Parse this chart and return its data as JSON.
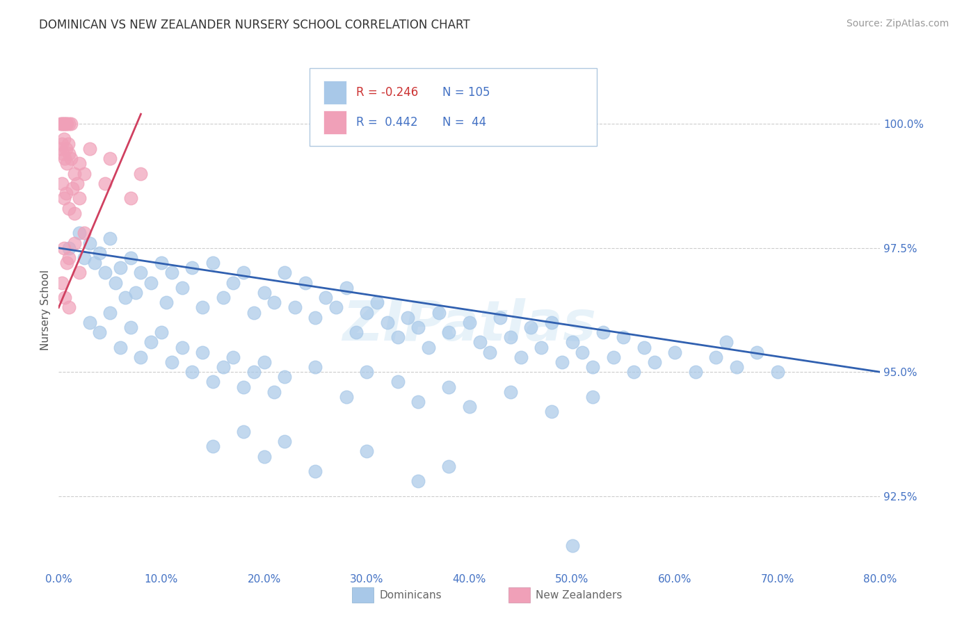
{
  "title": "DOMINICAN VS NEW ZEALANDER NURSERY SCHOOL CORRELATION CHART",
  "source": "Source: ZipAtlas.com",
  "xlabel_dominicans": "Dominicans",
  "xlabel_newzealanders": "New Zealanders",
  "ylabel": "Nursery School",
  "xlim": [
    0.0,
    80.0
  ],
  "ylim": [
    91.0,
    101.5
  ],
  "yticks": [
    92.5,
    95.0,
    97.5,
    100.0
  ],
  "xticks": [
    0.0,
    10.0,
    20.0,
    30.0,
    40.0,
    50.0,
    60.0,
    70.0,
    80.0
  ],
  "r_blue": -0.246,
  "n_blue": 105,
  "r_pink": 0.442,
  "n_pink": 44,
  "blue_color": "#a8c8e8",
  "pink_color": "#f0a0b8",
  "trend_blue": "#3060b0",
  "trend_pink": "#d04060",
  "watermark": "ZIPatlas",
  "blue_dots": [
    [
      1.0,
      97.5
    ],
    [
      2.0,
      97.8
    ],
    [
      2.5,
      97.3
    ],
    [
      3.0,
      97.6
    ],
    [
      3.5,
      97.2
    ],
    [
      4.0,
      97.4
    ],
    [
      4.5,
      97.0
    ],
    [
      5.0,
      97.7
    ],
    [
      5.5,
      96.8
    ],
    [
      6.0,
      97.1
    ],
    [
      6.5,
      96.5
    ],
    [
      7.0,
      97.3
    ],
    [
      7.5,
      96.6
    ],
    [
      8.0,
      97.0
    ],
    [
      9.0,
      96.8
    ],
    [
      10.0,
      97.2
    ],
    [
      10.5,
      96.4
    ],
    [
      11.0,
      97.0
    ],
    [
      12.0,
      96.7
    ],
    [
      13.0,
      97.1
    ],
    [
      14.0,
      96.3
    ],
    [
      15.0,
      97.2
    ],
    [
      16.0,
      96.5
    ],
    [
      17.0,
      96.8
    ],
    [
      18.0,
      97.0
    ],
    [
      19.0,
      96.2
    ],
    [
      20.0,
      96.6
    ],
    [
      21.0,
      96.4
    ],
    [
      22.0,
      97.0
    ],
    [
      23.0,
      96.3
    ],
    [
      24.0,
      96.8
    ],
    [
      25.0,
      96.1
    ],
    [
      26.0,
      96.5
    ],
    [
      27.0,
      96.3
    ],
    [
      28.0,
      96.7
    ],
    [
      29.0,
      95.8
    ],
    [
      30.0,
      96.2
    ],
    [
      31.0,
      96.4
    ],
    [
      32.0,
      96.0
    ],
    [
      33.0,
      95.7
    ],
    [
      34.0,
      96.1
    ],
    [
      35.0,
      95.9
    ],
    [
      36.0,
      95.5
    ],
    [
      37.0,
      96.2
    ],
    [
      38.0,
      95.8
    ],
    [
      40.0,
      96.0
    ],
    [
      41.0,
      95.6
    ],
    [
      42.0,
      95.4
    ],
    [
      43.0,
      96.1
    ],
    [
      44.0,
      95.7
    ],
    [
      45.0,
      95.3
    ],
    [
      46.0,
      95.9
    ],
    [
      47.0,
      95.5
    ],
    [
      48.0,
      96.0
    ],
    [
      49.0,
      95.2
    ],
    [
      50.0,
      95.6
    ],
    [
      51.0,
      95.4
    ],
    [
      52.0,
      95.1
    ],
    [
      53.0,
      95.8
    ],
    [
      54.0,
      95.3
    ],
    [
      55.0,
      95.7
    ],
    [
      56.0,
      95.0
    ],
    [
      57.0,
      95.5
    ],
    [
      58.0,
      95.2
    ],
    [
      60.0,
      95.4
    ],
    [
      62.0,
      95.0
    ],
    [
      64.0,
      95.3
    ],
    [
      65.0,
      95.6
    ],
    [
      66.0,
      95.1
    ],
    [
      68.0,
      95.4
    ],
    [
      70.0,
      95.0
    ],
    [
      3.0,
      96.0
    ],
    [
      4.0,
      95.8
    ],
    [
      5.0,
      96.2
    ],
    [
      6.0,
      95.5
    ],
    [
      7.0,
      95.9
    ],
    [
      8.0,
      95.3
    ],
    [
      9.0,
      95.6
    ],
    [
      10.0,
      95.8
    ],
    [
      11.0,
      95.2
    ],
    [
      12.0,
      95.5
    ],
    [
      13.0,
      95.0
    ],
    [
      14.0,
      95.4
    ],
    [
      15.0,
      94.8
    ],
    [
      16.0,
      95.1
    ],
    [
      17.0,
      95.3
    ],
    [
      18.0,
      94.7
    ],
    [
      19.0,
      95.0
    ],
    [
      20.0,
      95.2
    ],
    [
      21.0,
      94.6
    ],
    [
      22.0,
      94.9
    ],
    [
      25.0,
      95.1
    ],
    [
      28.0,
      94.5
    ],
    [
      30.0,
      95.0
    ],
    [
      33.0,
      94.8
    ],
    [
      35.0,
      94.4
    ],
    [
      38.0,
      94.7
    ],
    [
      40.0,
      94.3
    ],
    [
      44.0,
      94.6
    ],
    [
      48.0,
      94.2
    ],
    [
      52.0,
      94.5
    ],
    [
      15.0,
      93.5
    ],
    [
      18.0,
      93.8
    ],
    [
      20.0,
      93.3
    ],
    [
      22.0,
      93.6
    ],
    [
      25.0,
      93.0
    ],
    [
      30.0,
      93.4
    ],
    [
      35.0,
      92.8
    ],
    [
      38.0,
      93.1
    ],
    [
      50.0,
      91.5
    ]
  ],
  "pink_dots": [
    [
      0.2,
      100.0
    ],
    [
      0.3,
      100.0
    ],
    [
      0.4,
      100.0
    ],
    [
      0.5,
      100.0
    ],
    [
      0.6,
      100.0
    ],
    [
      0.7,
      100.0
    ],
    [
      0.8,
      100.0
    ],
    [
      1.0,
      100.0
    ],
    [
      1.2,
      100.0
    ],
    [
      0.2,
      99.5
    ],
    [
      0.3,
      99.6
    ],
    [
      0.4,
      99.4
    ],
    [
      0.5,
      99.7
    ],
    [
      0.6,
      99.3
    ],
    [
      0.7,
      99.5
    ],
    [
      0.8,
      99.2
    ],
    [
      0.9,
      99.6
    ],
    [
      1.0,
      99.4
    ],
    [
      1.2,
      99.3
    ],
    [
      1.5,
      99.0
    ],
    [
      1.8,
      98.8
    ],
    [
      2.0,
      99.2
    ],
    [
      2.5,
      99.0
    ],
    [
      0.3,
      98.8
    ],
    [
      0.5,
      98.5
    ],
    [
      0.7,
      98.6
    ],
    [
      1.0,
      98.3
    ],
    [
      1.3,
      98.7
    ],
    [
      1.5,
      98.2
    ],
    [
      2.0,
      98.5
    ],
    [
      2.5,
      97.8
    ],
    [
      3.0,
      99.5
    ],
    [
      0.5,
      97.5
    ],
    [
      0.8,
      97.2
    ],
    [
      1.0,
      97.3
    ],
    [
      1.5,
      97.6
    ],
    [
      2.0,
      97.0
    ],
    [
      0.3,
      96.8
    ],
    [
      0.6,
      96.5
    ],
    [
      1.0,
      96.3
    ],
    [
      4.5,
      98.8
    ],
    [
      5.0,
      99.3
    ],
    [
      7.0,
      98.5
    ],
    [
      8.0,
      99.0
    ]
  ],
  "blue_trend_x": [
    0.0,
    80.0
  ],
  "blue_trend_y": [
    97.5,
    95.0
  ],
  "pink_trend_x": [
    0.0,
    8.0
  ],
  "pink_trend_y": [
    96.3,
    100.2
  ]
}
